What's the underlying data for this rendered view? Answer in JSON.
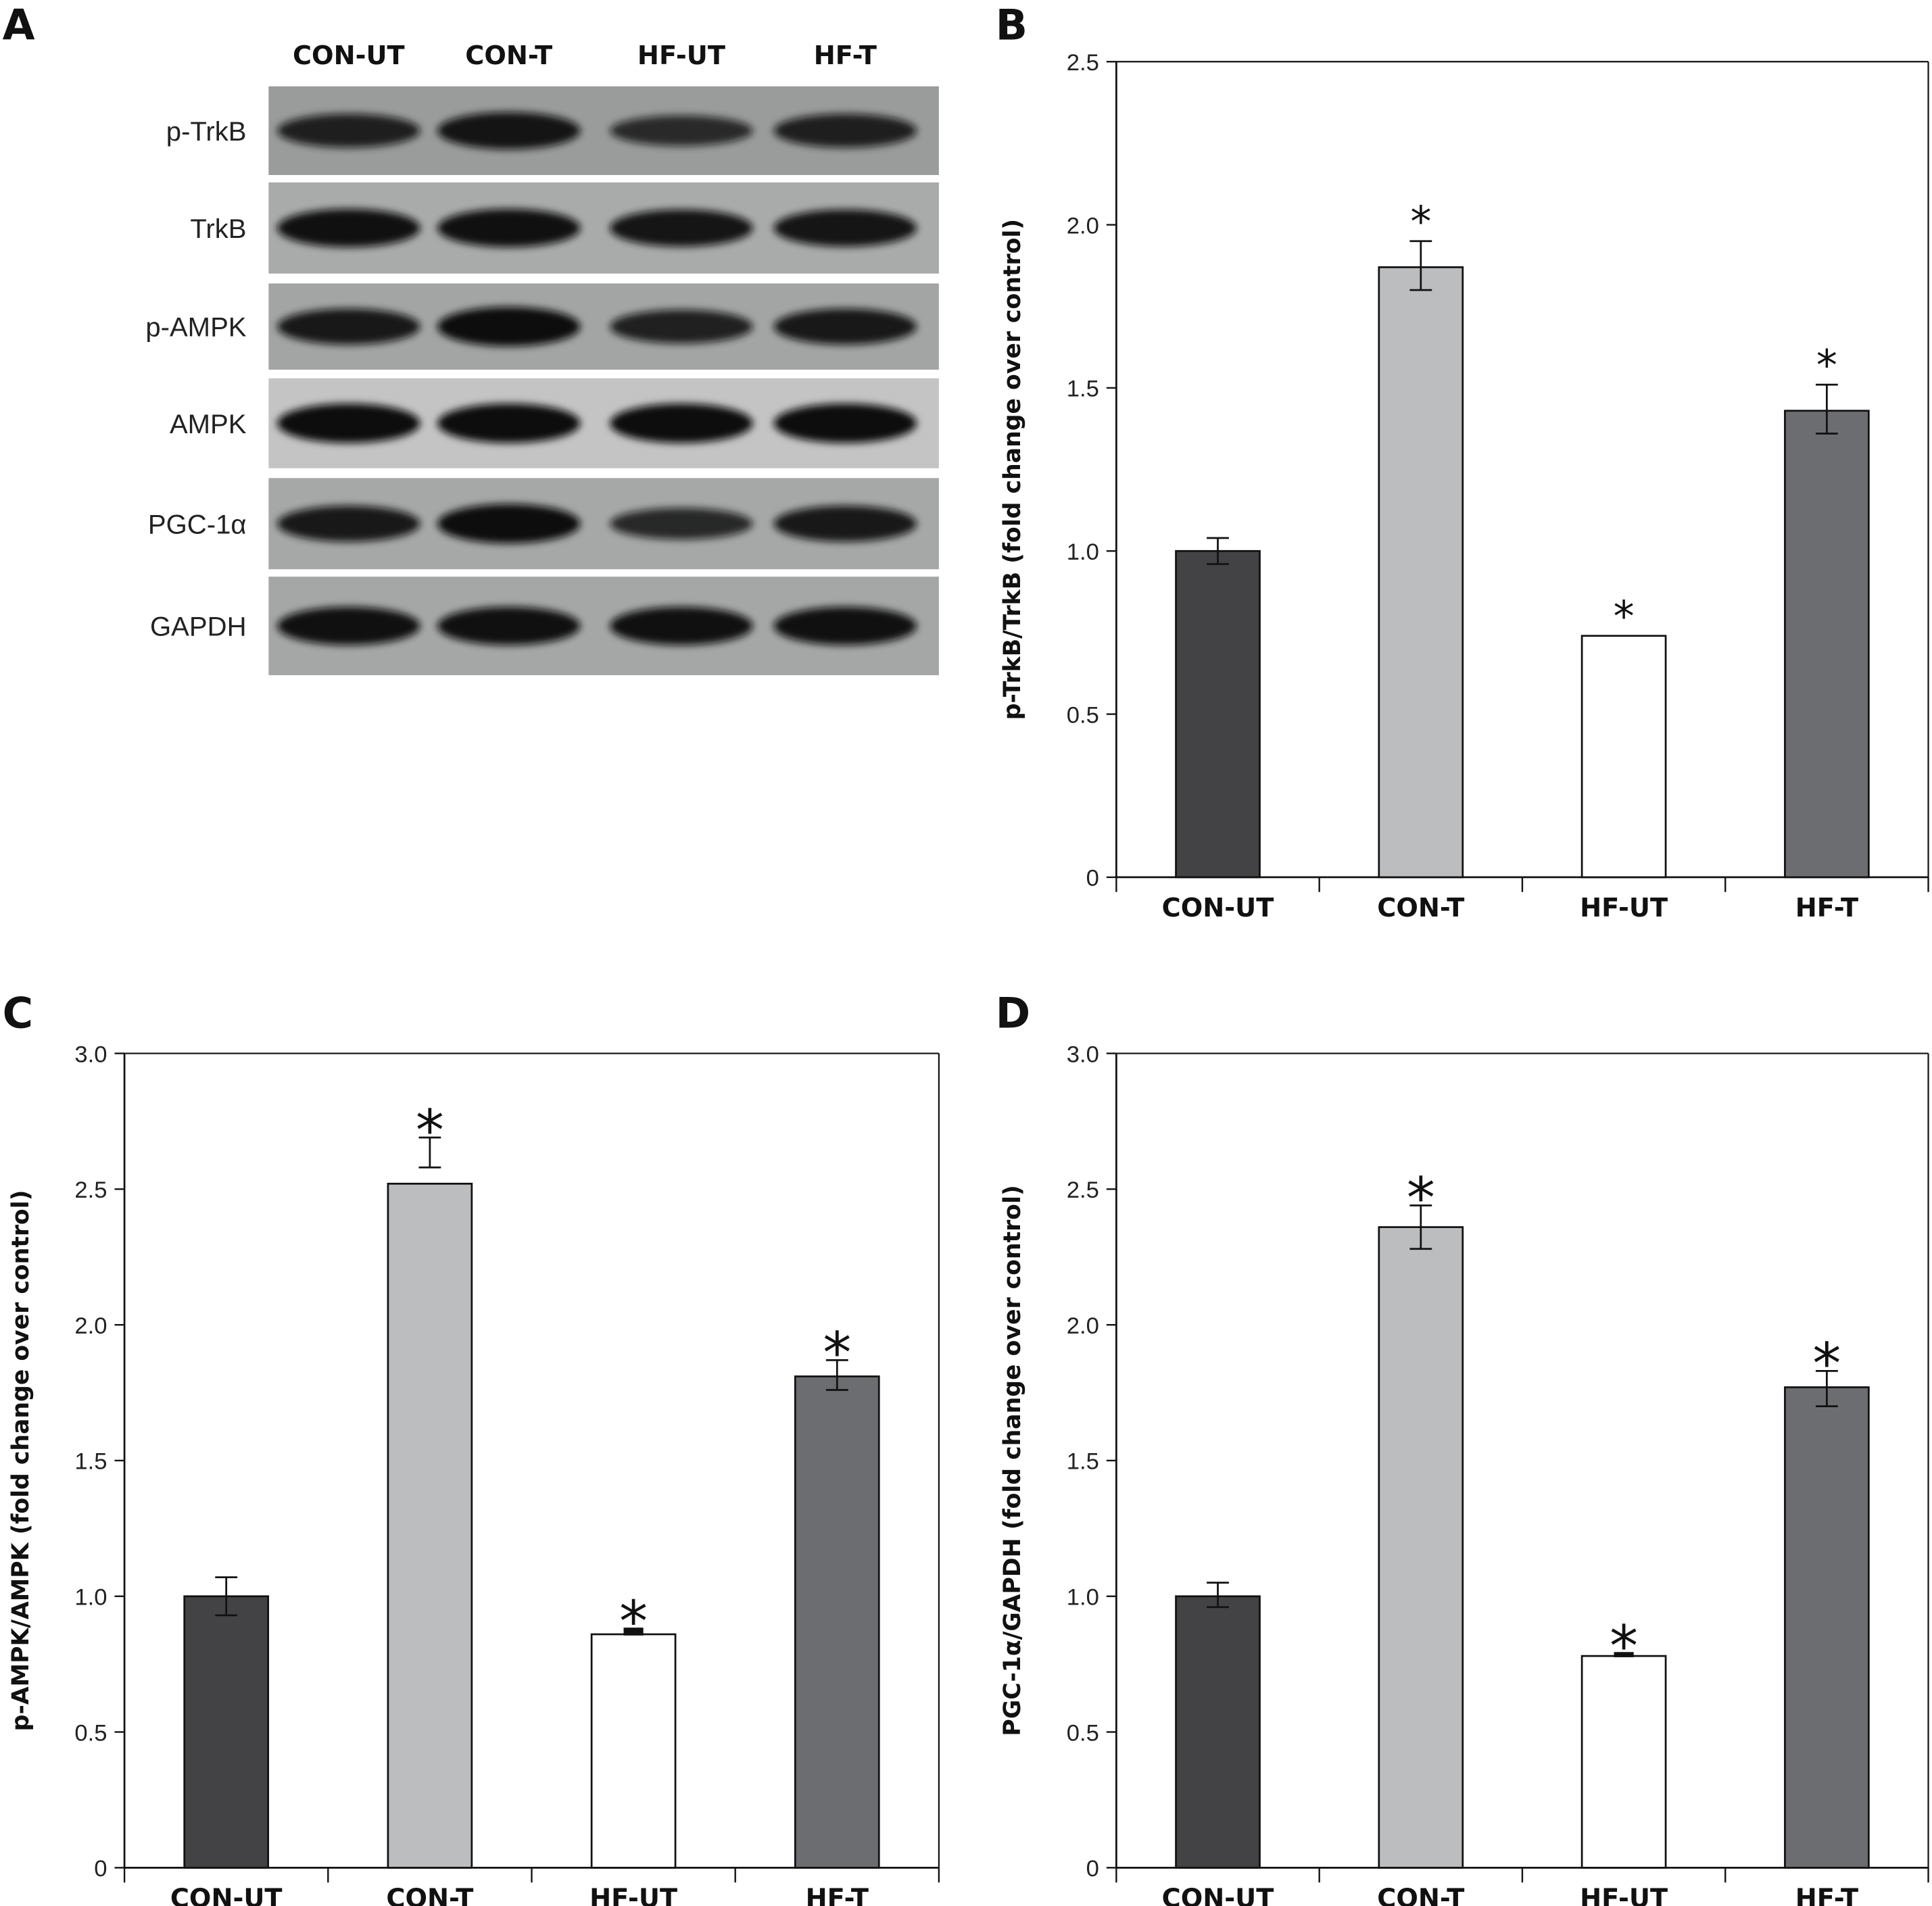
{
  "panels": {
    "a": "A",
    "b": "B",
    "c": "C",
    "d": "D"
  },
  "blot": {
    "lanes": [
      "CON-UT",
      "CON-T",
      "HF-UT",
      "HF-T"
    ],
    "rows": [
      {
        "label": "p-TrkB",
        "intensity": [
          0.75,
          0.9,
          0.6,
          0.75
        ]
      },
      {
        "label": "TrkB",
        "intensity": [
          0.95,
          0.95,
          0.9,
          0.9
        ]
      },
      {
        "label": "p-AMPK",
        "intensity": [
          0.85,
          1.0,
          0.75,
          0.85
        ]
      },
      {
        "label": "AMPK",
        "intensity": [
          1.0,
          1.0,
          1.0,
          1.0
        ]
      },
      {
        "label": "PGC-1α",
        "intensity": [
          0.85,
          1.0,
          0.65,
          0.85
        ]
      },
      {
        "label": "GAPDH",
        "intensity": [
          0.95,
          0.95,
          0.95,
          0.95
        ]
      }
    ]
  },
  "colors": {
    "CON-UT": "#434345",
    "CON-T": "#bcbdbf",
    "HF-UT": "#ffffff",
    "HF-T": "#6c6d71"
  },
  "chart_data": [
    {
      "id": "b",
      "type": "bar",
      "categories": [
        "CON-UT",
        "CON-T",
        "HF-UT",
        "HF-T"
      ],
      "values": [
        1.0,
        1.87,
        0.74,
        1.43
      ],
      "err_low": [
        0.96,
        1.8,
        null,
        1.36
      ],
      "err_high": [
        1.04,
        1.95,
        null,
        1.51
      ],
      "significant": [
        "",
        "*",
        "*",
        "*"
      ],
      "ylabel": "p-TrkB/TrkB (fold change over control)",
      "ylim": [
        0,
        2.5
      ],
      "yticks": [
        "0",
        "0.5",
        "1.0",
        "1.5",
        "2.0",
        "2.5"
      ]
    },
    {
      "id": "c",
      "type": "bar",
      "categories": [
        "CON-UT",
        "CON-T",
        "HF-UT",
        "HF-T"
      ],
      "values": [
        1.0,
        2.52,
        0.86,
        1.81
      ],
      "err_low": [
        0.93,
        2.58,
        0.86,
        1.76
      ],
      "err_high": [
        1.07,
        2.69,
        0.88,
        1.87
      ],
      "significant": [
        "",
        "*",
        "*",
        "*"
      ],
      "ylabel": "p-AMPK/AMPK (fold change over control)",
      "ylim": [
        0,
        3.0
      ],
      "yticks": [
        "0",
        "0.5",
        "1.0",
        "1.5",
        "2.0",
        "2.5",
        "3.0"
      ]
    },
    {
      "id": "d",
      "type": "bar",
      "categories": [
        "CON-UT",
        "CON-T",
        "HF-UT",
        "HF-T"
      ],
      "values": [
        1.0,
        2.36,
        0.78,
        1.77
      ],
      "err_low": [
        0.96,
        2.28,
        0.78,
        1.7
      ],
      "err_high": [
        1.05,
        2.44,
        0.79,
        1.83
      ],
      "significant": [
        "",
        "*",
        "*",
        "*"
      ],
      "ylabel": "PGC-1α/GAPDH (fold change over control)",
      "ylim": [
        0,
        3.0
      ],
      "yticks": [
        "0",
        "0.5",
        "1.0",
        "1.5",
        "2.0",
        "2.5",
        "3.0"
      ]
    }
  ]
}
